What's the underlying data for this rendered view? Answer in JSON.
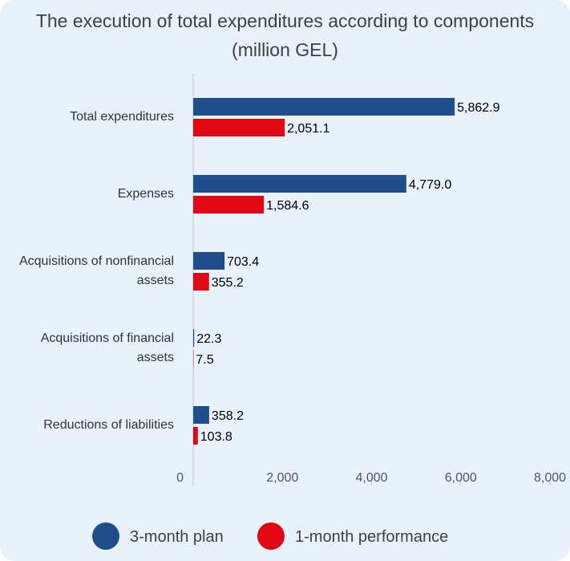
{
  "chart_data": {
    "type": "hbar",
    "title": "The execution of total expenditures according to components (million GEL)",
    "categories": [
      "Total expenditures",
      "Expenses",
      "Acquisitions of nonfinancial assets",
      "Acquisitions of financial assets",
      "Reductions of liabilities"
    ],
    "series": [
      {
        "name": "3-month plan",
        "color": "#1f4e8c",
        "values": [
          5862.9,
          4779.0,
          703.4,
          22.3,
          358.2
        ],
        "value_labels": [
          "5,862.9",
          "4,779.0",
          "703.4",
          "22.3",
          "358.2"
        ]
      },
      {
        "name": "1-month performance",
        "color": "#e30613",
        "values": [
          2051.1,
          1584.6,
          355.2,
          7.5,
          103.8
        ],
        "value_labels": [
          "2,051.1",
          "1,584.6",
          "355.2",
          "7.5",
          "103.8"
        ]
      }
    ],
    "xlim": [
      0,
      8000
    ],
    "xticks": [
      0,
      {
        "value": 2000,
        "label": "2,000"
      },
      {
        "value": 4000,
        "label": "4,000"
      },
      {
        "value": 6000,
        "label": "6,000"
      },
      {
        "value": 8000,
        "label": "8,000"
      }
    ],
    "legend": "bottom"
  }
}
